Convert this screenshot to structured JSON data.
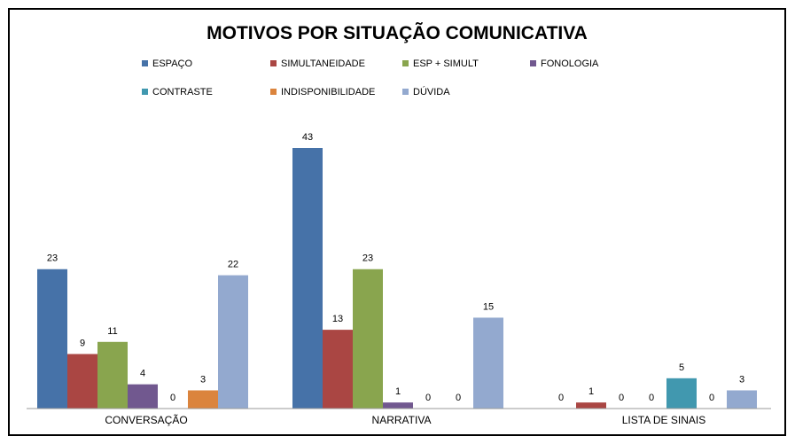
{
  "chart_data": {
    "type": "bar",
    "title": "MOTIVOS  POR SITUAÇÃO COMUNICATIVA",
    "categories": [
      "CONVERSAÇÃO",
      "NARRATIVA",
      "LISTA DE SINAIS"
    ],
    "series": [
      {
        "name": "ESPAÇO",
        "color": "#4672A8",
        "values": [
          23,
          43,
          0
        ]
      },
      {
        "name": "SIMULTANEIDADE",
        "color": "#AA4643",
        "values": [
          9,
          13,
          1
        ]
      },
      {
        "name": "ESP + SIMULT",
        "color": "#89A54E",
        "values": [
          11,
          23,
          0
        ]
      },
      {
        "name": "FONOLOGIA",
        "color": "#71588F",
        "values": [
          4,
          1,
          0
        ]
      },
      {
        "name": "CONTRASTE",
        "color": "#4198AF",
        "values": [
          0,
          0,
          5
        ]
      },
      {
        "name": "INDISPONIBILIDADE",
        "color": "#DB843D",
        "values": [
          3,
          0,
          0
        ]
      },
      {
        "name": "DÚVIDA",
        "color": "#93A9CF",
        "values": [
          22,
          15,
          3
        ]
      }
    ],
    "ylim": [
      0,
      46
    ],
    "grid": false,
    "legend": "top",
    "data_labels": true
  }
}
